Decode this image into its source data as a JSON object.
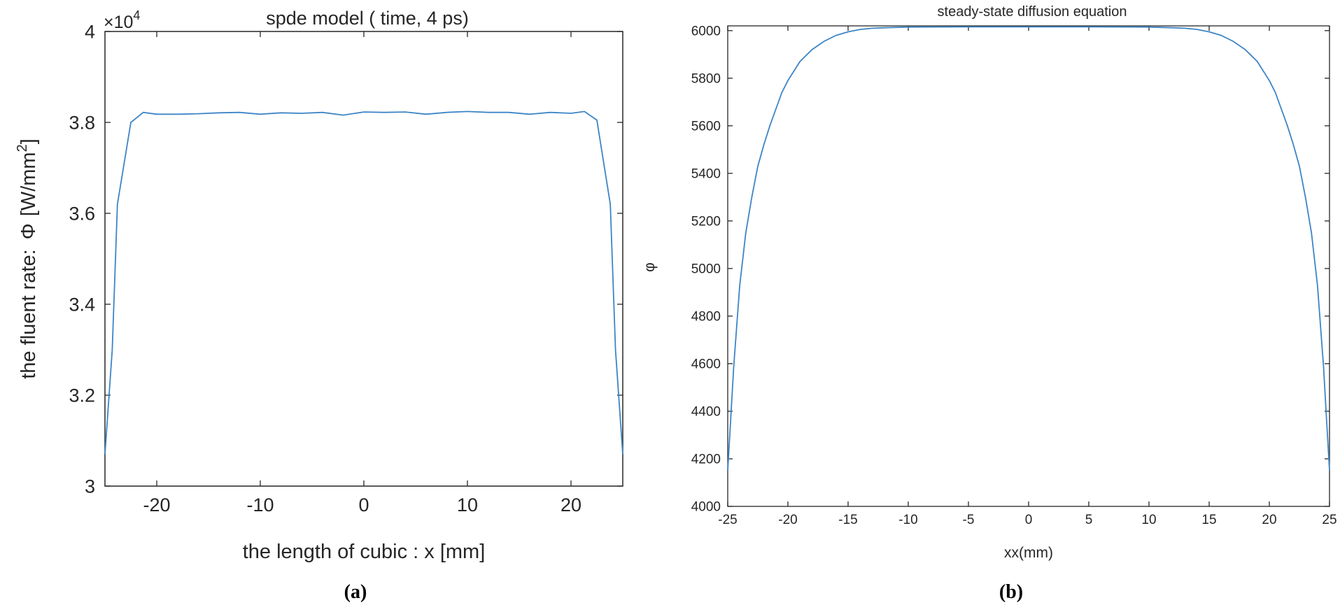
{
  "chart_data": [
    {
      "panel": "(a)",
      "type": "line",
      "title": "spde model ( time, 4 ps)",
      "xlabel": "the length of cubic : x [mm]",
      "ylabel_prefix": "the fluent rate:",
      "ylabel_symbol": "Φ",
      "ylabel_unit": "[W/mm",
      "ylabel_unit_sup": "2",
      "ylabel_unit_close": "]",
      "exponent_label": "×10",
      "exponent_power": "4",
      "xlim": [
        -25,
        25
      ],
      "ylim": [
        3.0,
        4.0
      ],
      "xticks": [
        -20,
        -10,
        0,
        10,
        20
      ],
      "yticks": [
        3,
        3.2,
        3.4,
        3.6,
        3.8,
        4
      ],
      "ytick_labels": [
        "3",
        "3.2",
        "3.4",
        "3.6",
        "3.8",
        "4"
      ],
      "grid": false,
      "color": "#3d85c6",
      "series": [
        {
          "x": [
            -25,
            -24.3,
            -23.8,
            -22.5,
            -21.3,
            -20,
            -18,
            -16,
            -14,
            -12,
            -10,
            -8,
            -6,
            -4,
            -2,
            0,
            2,
            4,
            6,
            8,
            10,
            12,
            14,
            16,
            18,
            20,
            21.3,
            22.5,
            23.8,
            24.3,
            25
          ],
          "y": [
            3.07,
            3.3,
            3.62,
            3.8,
            3.822,
            3.818,
            3.818,
            3.819,
            3.821,
            3.822,
            3.818,
            3.821,
            3.82,
            3.822,
            3.816,
            3.823,
            3.822,
            3.823,
            3.818,
            3.822,
            3.824,
            3.822,
            3.822,
            3.818,
            3.822,
            3.82,
            3.824,
            3.805,
            3.62,
            3.3,
            3.07
          ]
        }
      ]
    },
    {
      "panel": "(b)",
      "type": "line",
      "title": "steady-state diffusion equation",
      "xlabel": "xx(mm)",
      "ylabel": "φ",
      "xlim": [
        -25,
        25
      ],
      "ylim": [
        4000,
        6020
      ],
      "xticks": [
        -25,
        -20,
        -15,
        -10,
        -5,
        0,
        5,
        10,
        15,
        20,
        25
      ],
      "yticks": [
        4000,
        4200,
        4400,
        4600,
        4800,
        5000,
        5200,
        5400,
        5600,
        5800,
        6000
      ],
      "grid": false,
      "color": "#3d85c6",
      "series": [
        {
          "x": [
            -25,
            -24.5,
            -24,
            -23.5,
            -23,
            -22.5,
            -22,
            -21.5,
            -21,
            -20.5,
            -20,
            -19,
            -18,
            -17,
            -16,
            -15,
            -14,
            -13,
            -12,
            -10,
            -5,
            0,
            5,
            10,
            12,
            13,
            14,
            15,
            16,
            17,
            18,
            19,
            20,
            20.5,
            21,
            21.5,
            22,
            22.5,
            23,
            23.5,
            24,
            24.5,
            25
          ],
          "y": [
            4150,
            4590,
            4930,
            5150,
            5300,
            5430,
            5520,
            5600,
            5670,
            5740,
            5790,
            5870,
            5920,
            5955,
            5980,
            5995,
            6005,
            6010,
            6012,
            6015,
            6016,
            6016,
            6016,
            6015,
            6012,
            6010,
            6005,
            5995,
            5980,
            5955,
            5920,
            5870,
            5790,
            5740,
            5670,
            5600,
            5520,
            5430,
            5300,
            5150,
            4930,
            4590,
            4150
          ]
        }
      ]
    }
  ],
  "captions": {
    "a": "(a)",
    "b": "(b)"
  }
}
